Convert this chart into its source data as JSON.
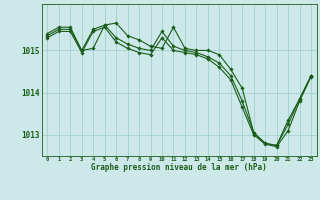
{
  "xlabel": "Graphe pression niveau de la mer (hPa)",
  "background_color": "#cce8e8",
  "grid_color": "#99cccc",
  "line_color": "#1a5c1a",
  "ylim": [
    1012.5,
    1016.1
  ],
  "yticks": [
    1013,
    1014,
    1015
  ],
  "x_hours": [
    0,
    1,
    2,
    3,
    4,
    5,
    6,
    7,
    8,
    9,
    10,
    11,
    12,
    13,
    14,
    15,
    16,
    17,
    18,
    19,
    20,
    21,
    22,
    23
  ],
  "series1": [
    1015.4,
    1015.55,
    1015.55,
    1015.0,
    1015.05,
    1015.6,
    1015.65,
    1015.35,
    1015.25,
    1015.1,
    1015.05,
    1015.55,
    1015.05,
    1015.0,
    1015.0,
    1014.9,
    1014.55,
    1014.1,
    1013.05,
    1012.8,
    1012.75,
    1013.35,
    1013.85,
    1014.4
  ],
  "series2": [
    1015.35,
    1015.5,
    1015.5,
    1015.0,
    1015.5,
    1015.6,
    1015.3,
    1015.15,
    1015.05,
    1015.0,
    1015.45,
    1015.1,
    1015.0,
    1014.95,
    1014.85,
    1014.7,
    1014.4,
    1013.8,
    1013.05,
    1012.8,
    1012.75,
    1013.25,
    1013.85,
    1014.4
  ],
  "series3": [
    1015.3,
    1015.45,
    1015.45,
    1014.95,
    1015.45,
    1015.55,
    1015.2,
    1015.05,
    1014.95,
    1014.9,
    1015.3,
    1015.0,
    1014.95,
    1014.9,
    1014.8,
    1014.6,
    1014.3,
    1013.65,
    1013.0,
    1012.78,
    1012.72,
    1013.1,
    1013.8,
    1014.38
  ],
  "xtick_fontsize": 4.0,
  "ytick_fontsize": 5.5,
  "xlabel_fontsize": 5.5
}
